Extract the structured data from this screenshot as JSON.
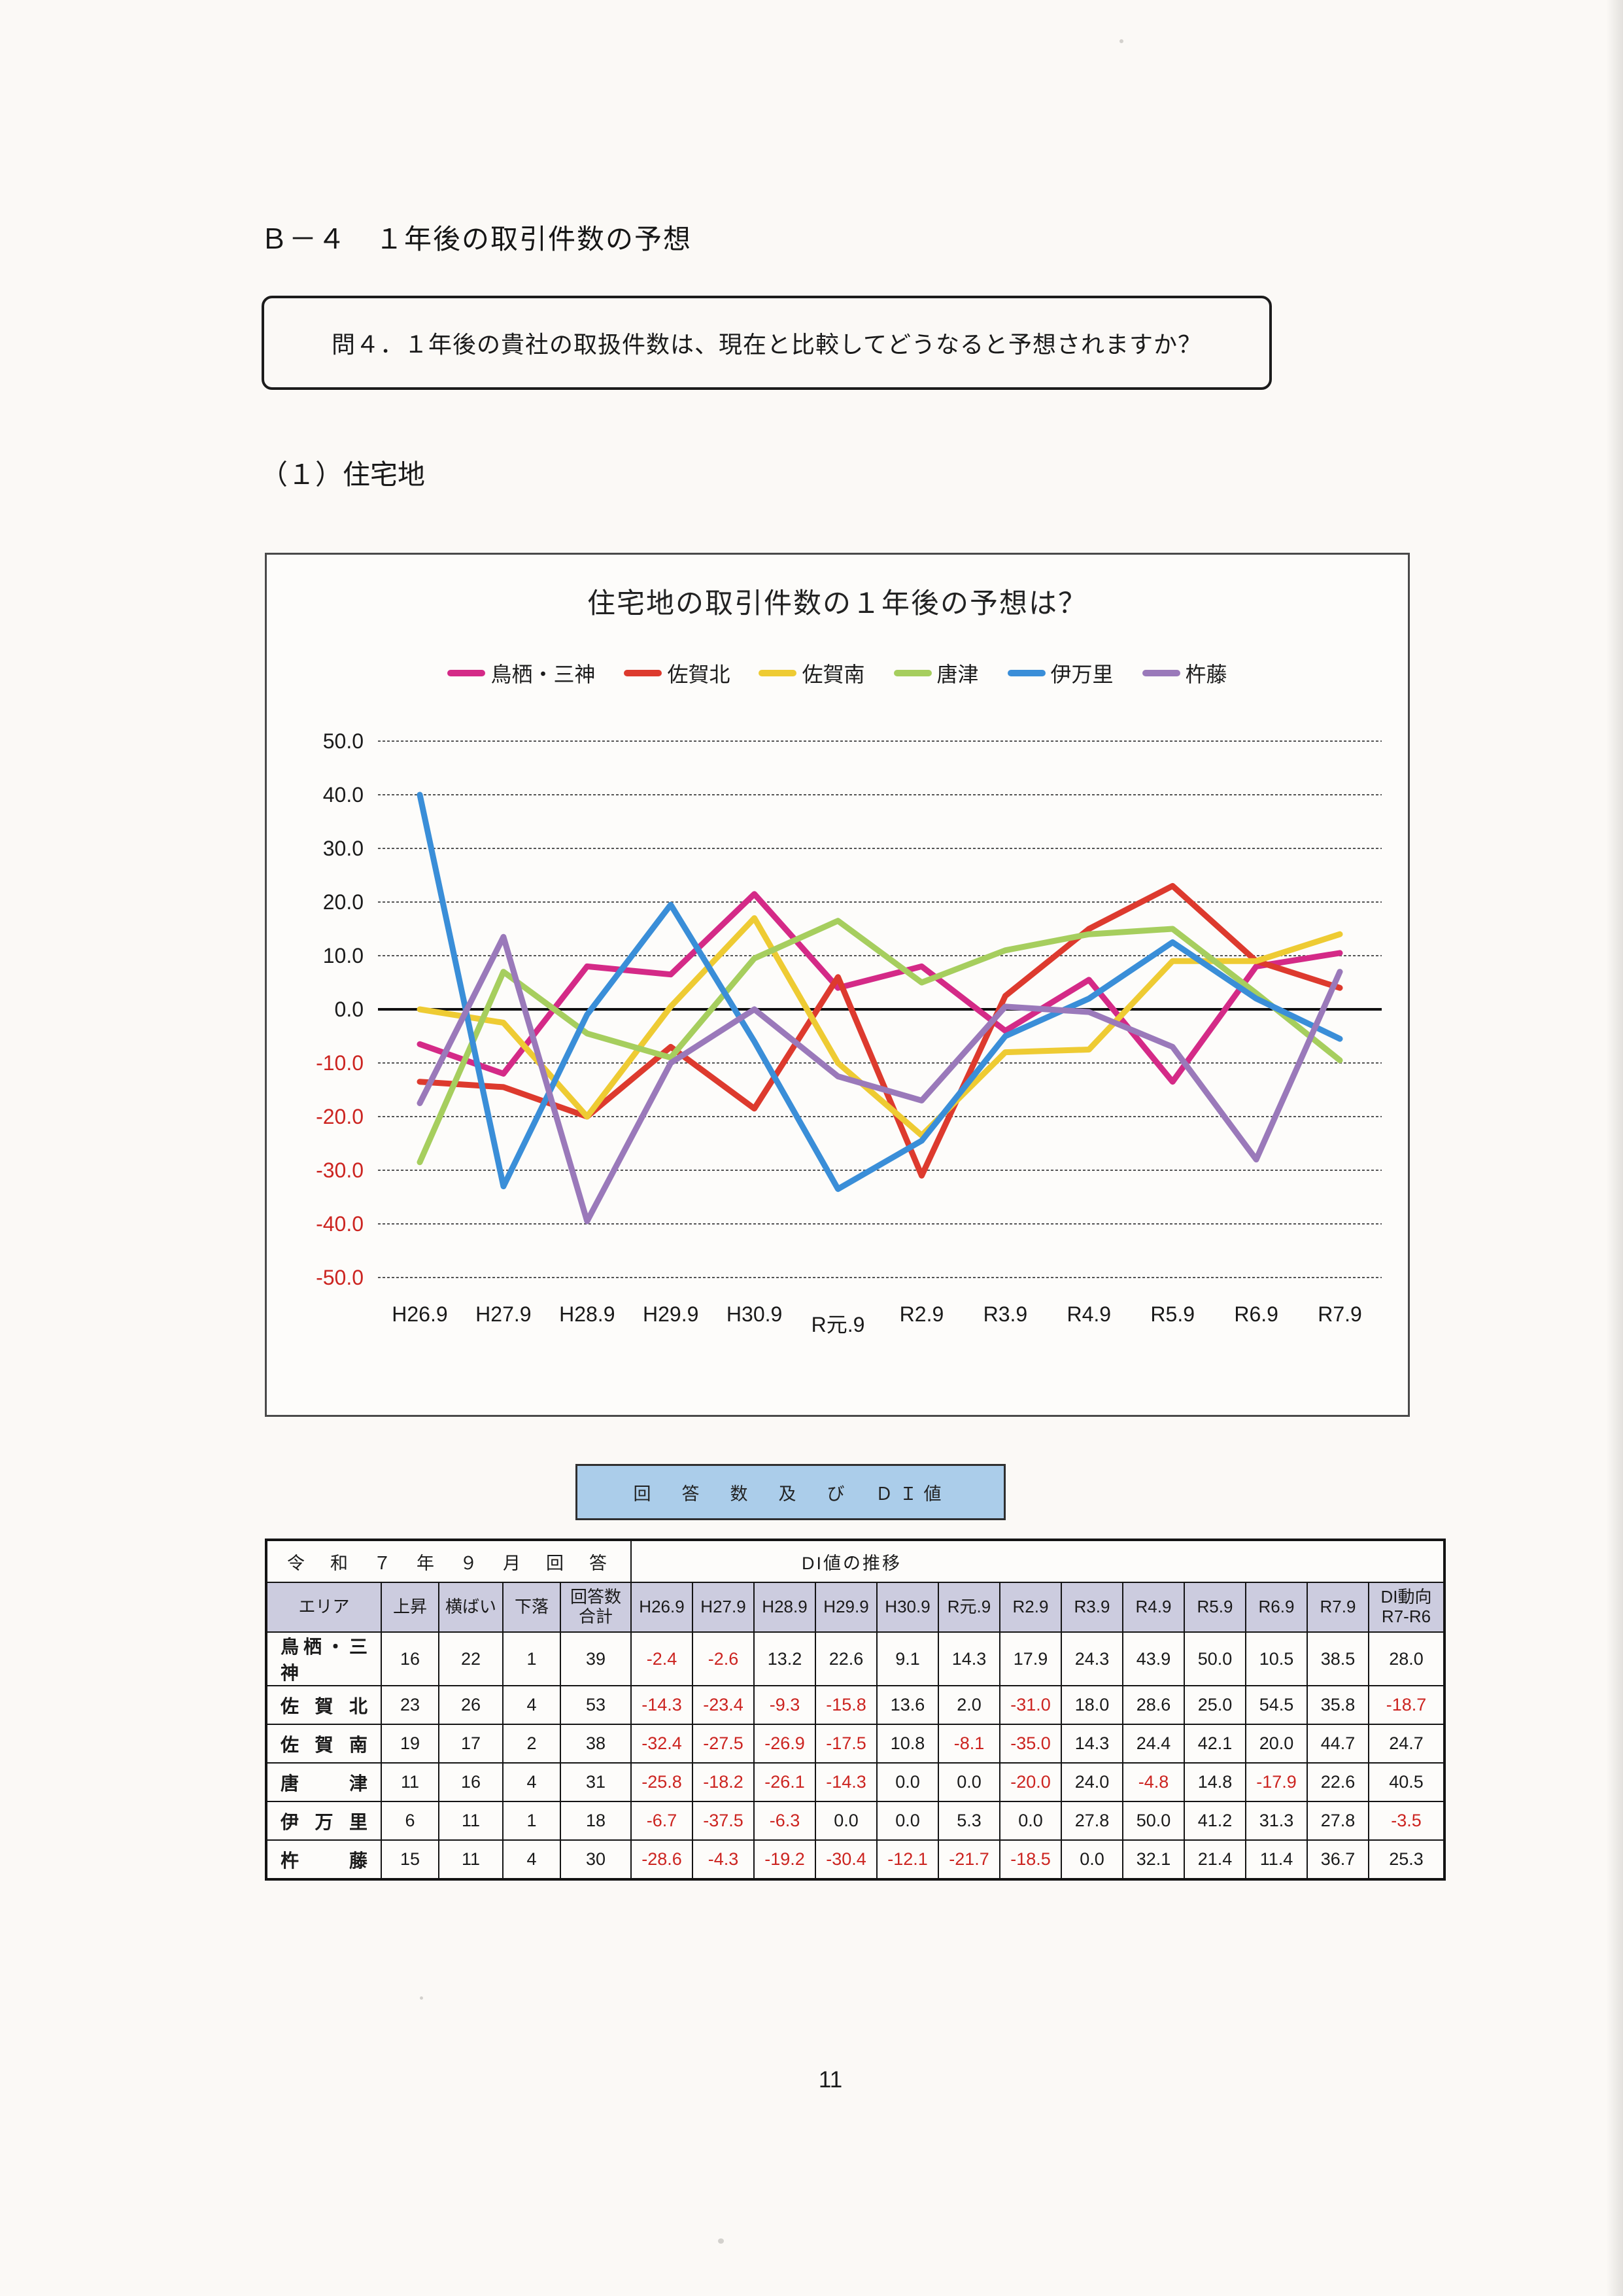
{
  "page": {
    "heading": "Ｂ－４　１年後の取引件数の予想",
    "question": "問４．１年後の貴社の取扱件数は、現在と比較してどうなると予想されますか？",
    "subsection": "（１）住宅地",
    "page_number": "11"
  },
  "banner": {
    "label": "回　答　数　及　び　ＤＩ値"
  },
  "chart_data": {
    "type": "line",
    "title": "住宅地の取引件数の１年後の予想は？",
    "categories": [
      "H26.9",
      "H27.9",
      "H28.9",
      "H29.9",
      "H30.9",
      "R元.9",
      "R2.9",
      "R3.9",
      "R4.9",
      "R5.9",
      "R6.9",
      "R7.9"
    ],
    "ylim": [
      -50,
      50
    ],
    "ytick_step": 10,
    "grid": true,
    "legend_position": "top",
    "axis_colors": {
      "positive_tick": "#1a1a1a",
      "negative_tick": "#cc2420",
      "zero_line": "#111111",
      "gridline": "#555555"
    },
    "series": [
      {
        "name": "鳥栖・三神",
        "color": "#d42a87",
        "values": [
          -6.5,
          -12,
          8,
          6.5,
          21.5,
          4,
          8,
          -4,
          5.5,
          -13.5,
          8,
          10.5
        ]
      },
      {
        "name": "佐賀北",
        "color": "#dd3a2e",
        "values": [
          -13.5,
          -14.5,
          -20,
          -7,
          -18.5,
          6,
          -31,
          2.5,
          15,
          23,
          9,
          4
        ]
      },
      {
        "name": "佐賀南",
        "color": "#eecb33",
        "values": [
          0,
          -2.5,
          -20,
          0.5,
          17,
          -10,
          -23.5,
          -8,
          -7.5,
          9,
          9,
          14
        ]
      },
      {
        "name": "唐津",
        "color": "#a6ce5e",
        "values": [
          -28.5,
          7,
          -4.5,
          -9,
          9.5,
          16.5,
          5,
          11,
          14,
          15,
          3,
          -9.5
        ]
      },
      {
        "name": "伊万里",
        "color": "#3a8ed8",
        "values": [
          40,
          -33,
          -1,
          19.5,
          -6,
          -33.5,
          -24.5,
          -5,
          2,
          12.5,
          2,
          -5.5
        ]
      },
      {
        "name": "杵藤",
        "color": "#9a79ba",
        "values": [
          -17.5,
          13.5,
          -39.5,
          -10,
          0,
          -12.5,
          -17,
          0.5,
          -0.5,
          -7,
          -28,
          7
        ]
      }
    ]
  },
  "table": {
    "group_header_left": "令　和　７　年　９　月　回　答",
    "group_header_right": "DI値の推移",
    "area_col": "エリア",
    "count_cols": [
      "上昇",
      "横ばい",
      "下落"
    ],
    "total_col": [
      "回答数",
      "合計"
    ],
    "di_cols": [
      "H26.9",
      "H27.9",
      "H28.9",
      "H29.9",
      "H30.9",
      "R元.9",
      "R2.9",
      "R3.9",
      "R4.9",
      "R5.9",
      "R6.9",
      "R7.9"
    ],
    "trend_col": [
      "DI動向",
      "R7-R6"
    ],
    "rows": [
      {
        "area": "鳥栖・三神",
        "up": 16,
        "flat": 22,
        "down": 1,
        "total": 39,
        "di": [
          -2.4,
          -2.6,
          13.2,
          22.6,
          9.1,
          14.3,
          17.9,
          24.3,
          43.9,
          50.0,
          10.5,
          38.5
        ],
        "trend": 28.0
      },
      {
        "area": "佐賀北",
        "up": 23,
        "flat": 26,
        "down": 4,
        "total": 53,
        "di": [
          -14.3,
          -23.4,
          -9.3,
          -15.8,
          13.6,
          2.0,
          -31.0,
          18.0,
          28.6,
          25.0,
          54.5,
          35.8
        ],
        "trend": -18.7
      },
      {
        "area": "佐賀南",
        "up": 19,
        "flat": 17,
        "down": 2,
        "total": 38,
        "di": [
          -32.4,
          -27.5,
          -26.9,
          -17.5,
          10.8,
          -8.1,
          -35.0,
          14.3,
          24.4,
          42.1,
          20.0,
          44.7
        ],
        "trend": 24.7
      },
      {
        "area": "唐津",
        "up": 11,
        "flat": 16,
        "down": 4,
        "total": 31,
        "di": [
          -25.8,
          -18.2,
          -26.1,
          -14.3,
          0.0,
          0.0,
          -20.0,
          24.0,
          -4.8,
          14.8,
          -17.9,
          22.6
        ],
        "trend": 40.5
      },
      {
        "area": "伊万里",
        "up": 6,
        "flat": 11,
        "down": 1,
        "total": 18,
        "di": [
          -6.7,
          -37.5,
          -6.3,
          0.0,
          0.0,
          5.3,
          0.0,
          27.8,
          50.0,
          41.2,
          31.3,
          27.8
        ],
        "trend": -3.5
      },
      {
        "area": "杵藤",
        "up": 15,
        "flat": 11,
        "down": 4,
        "total": 30,
        "di": [
          -28.6,
          -4.3,
          -19.2,
          -30.4,
          -12.1,
          -21.7,
          -18.5,
          0.0,
          32.1,
          21.4,
          11.4,
          36.7
        ],
        "trend": 25.3
      }
    ]
  }
}
